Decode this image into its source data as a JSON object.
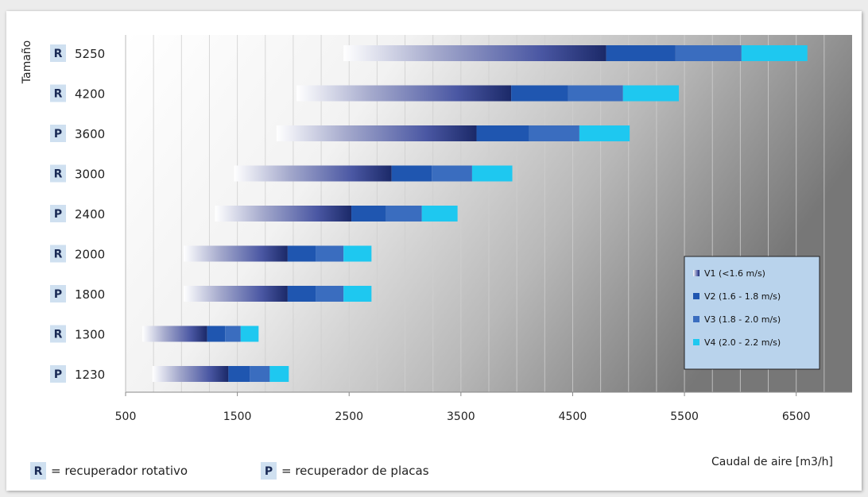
{
  "chart_data": {
    "type": "bar",
    "orientation": "horizontal-stacked-range",
    "xlabel": "Caudal de aire [m3/h]",
    "ylabel": "Tamaño",
    "xlim": [
      500,
      7000
    ],
    "xticks": [
      500,
      1500,
      2500,
      3500,
      4500,
      5500,
      6500
    ],
    "minor_grid_step": 250,
    "grid": true,
    "legend_position": "right",
    "series": [
      {
        "name": "V1 (<1.6 m/s)",
        "color": "#3a4898",
        "style": "gradient"
      },
      {
        "name": "V2 (1.6 - 1.8 m/s)",
        "color": "#1f56b0"
      },
      {
        "name": "V3 (1.8 - 2.0 m/s)",
        "color": "#3a6dbf"
      },
      {
        "name": "V4 (2.0 - 2.2 m/s)",
        "color": "#1ec8f0"
      }
    ],
    "categories": [
      {
        "size": "5250",
        "type": "R",
        "v1": [
          2450,
          4800
        ],
        "v2": [
          4800,
          5420
        ],
        "v3": [
          5420,
          6010
        ],
        "v4": [
          6010,
          6600
        ]
      },
      {
        "size": "4200",
        "type": "R",
        "v1": [
          2030,
          3950
        ],
        "v2": [
          3950,
          4460
        ],
        "v3": [
          4460,
          4950
        ],
        "v4": [
          4950,
          5450
        ]
      },
      {
        "size": "3600",
        "type": "P",
        "v1": [
          1850,
          3640
        ],
        "v2": [
          3640,
          4110
        ],
        "v3": [
          4110,
          4560
        ],
        "v4": [
          4560,
          5010
        ]
      },
      {
        "size": "3000",
        "type": "R",
        "v1": [
          1470,
          2880
        ],
        "v2": [
          2880,
          3240
        ],
        "v3": [
          3240,
          3600
        ],
        "v4": [
          3600,
          3960
        ]
      },
      {
        "size": "2400",
        "type": "P",
        "v1": [
          1300,
          2520
        ],
        "v2": [
          2520,
          2830
        ],
        "v3": [
          2830,
          3150
        ],
        "v4": [
          3150,
          3470
        ]
      },
      {
        "size": "2000",
        "type": "R",
        "v1": [
          1020,
          1950
        ],
        "v2": [
          1950,
          2200
        ],
        "v3": [
          2200,
          2450
        ],
        "v4": [
          2450,
          2700
        ]
      },
      {
        "size": "1800",
        "type": "P",
        "v1": [
          1020,
          1950
        ],
        "v2": [
          1950,
          2200
        ],
        "v3": [
          2200,
          2450
        ],
        "v4": [
          2450,
          2700
        ]
      },
      {
        "size": "1300",
        "type": "R",
        "v1": [
          650,
          1230
        ],
        "v2": [
          1230,
          1390
        ],
        "v3": [
          1390,
          1530
        ],
        "v4": [
          1530,
          1690
        ]
      },
      {
        "size": "1230",
        "type": "P",
        "v1": [
          740,
          1420
        ],
        "v2": [
          1420,
          1610
        ],
        "v3": [
          1610,
          1790
        ],
        "v4": [
          1790,
          1960
        ]
      }
    ]
  },
  "notes": [
    {
      "letter": "R",
      "text": "= recuperador rotativo"
    },
    {
      "letter": "P",
      "text": "= recuperador de placas"
    }
  ]
}
